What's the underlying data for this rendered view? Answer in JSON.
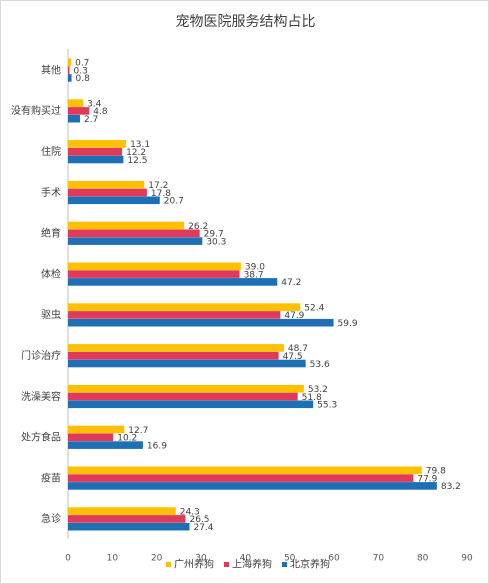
{
  "chart_data": {
    "type": "bar",
    "orientation": "horizontal",
    "title": "宠物医院服务结构占比",
    "categories": [
      "其他",
      "没有购买过",
      "住院",
      "手术",
      "绝育",
      "体检",
      "驱虫",
      "门诊治疗",
      "洗澡美容",
      "处方食品",
      "疫苗",
      "急诊"
    ],
    "series": [
      {
        "name": "广州养狗",
        "color": "#FFC000",
        "values": [
          0.7,
          3.4,
          13.1,
          17.2,
          26.2,
          39.0,
          52.4,
          48.7,
          53.2,
          12.7,
          79.8,
          24.3
        ]
      },
      {
        "name": "上海养狗",
        "color": "#E0395A",
        "values": [
          0.3,
          4.8,
          12.2,
          17.8,
          29.7,
          38.7,
          47.9,
          47.5,
          51.8,
          10.2,
          77.9,
          26.5
        ]
      },
      {
        "name": "北京养狗",
        "color": "#1F6FB5",
        "values": [
          0.8,
          2.7,
          12.5,
          20.7,
          30.3,
          47.2,
          59.9,
          53.6,
          55.3,
          16.9,
          83.2,
          27.4
        ]
      }
    ],
    "xlim": [
      0,
      90
    ],
    "xticks": [
      0,
      10,
      20,
      30,
      40,
      50,
      60,
      70,
      80,
      90
    ],
    "grid": false,
    "legend": "bottom",
    "xlabel": "",
    "ylabel": ""
  }
}
